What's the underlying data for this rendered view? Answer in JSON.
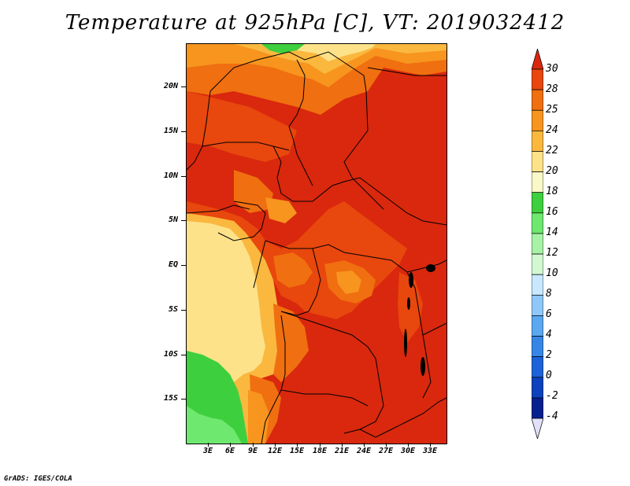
{
  "title": "Temperature at 925hPa [C], VT: 2019032412",
  "credit": "GrADS: IGES/COLA",
  "map": {
    "lat_labels": [
      "20N",
      "15N",
      "10N",
      "5N",
      "EQ",
      "5S",
      "10S",
      "15S"
    ],
    "lon_labels": [
      "3E",
      "6E",
      "9E",
      "12E",
      "15E",
      "18E",
      "21E",
      "24E",
      "27E",
      "30E",
      "33E"
    ]
  },
  "colorbar": {
    "labels": [
      "30",
      "28",
      "25",
      "24",
      "22",
      "20",
      "18",
      "16",
      "14",
      "12",
      "10",
      "8",
      "6",
      "4",
      "2",
      "0",
      "-2",
      "-4"
    ],
    "colors": [
      "#d9280d",
      "#e8470d",
      "#f06f10",
      "#f7951e",
      "#fab83f",
      "#fde28a",
      "#f8f8c8",
      "#3ecf3e",
      "#6ee86e",
      "#a6f2a6",
      "#d2f8d2",
      "#c8e8ff",
      "#8ec8f8",
      "#5aa8f0",
      "#3686e6",
      "#1c62d8",
      "#0c42bc",
      "#06208e",
      "#000060"
    ],
    "top_color": "#d9280d",
    "bottom_color": "#e0e0f8"
  },
  "legend_colors": {
    "temp_30": "#d9280d",
    "temp_28": "#e8470d",
    "temp_25": "#f06f10",
    "temp_24": "#f7951e",
    "temp_22": "#fab83f",
    "temp_20": "#fde28a",
    "temp_18": "#f8f8c8",
    "temp_16": "#3ecf3e",
    "temp_14": "#6ee86e"
  }
}
